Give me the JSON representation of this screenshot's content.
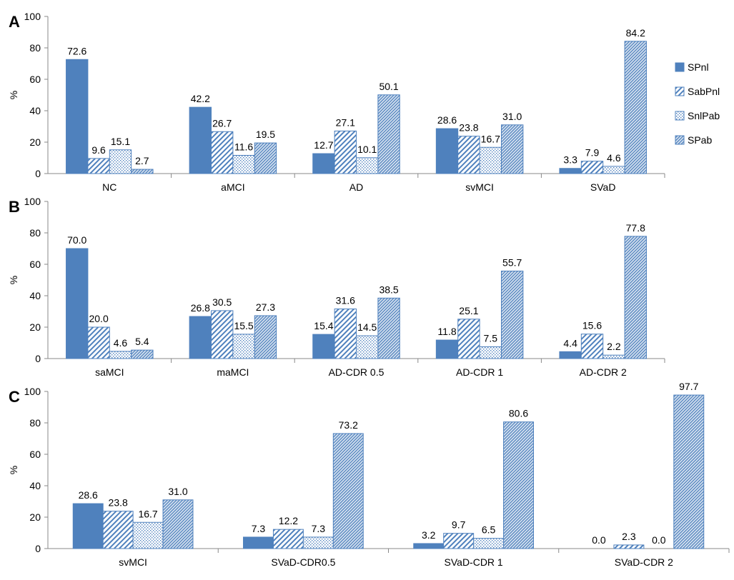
{
  "legend": [
    {
      "name": "SPnl",
      "fill": "solid",
      "color": "#4f81bd"
    },
    {
      "name": "SabPnl",
      "fill": "diagonal-hatch",
      "color": "#4f81bd"
    },
    {
      "name": "SnlPab",
      "fill": "dots",
      "color": "#4f81bd"
    },
    {
      "name": "SPab",
      "fill": "dense-hatch",
      "color": "#4f81bd"
    }
  ],
  "chart_data": [
    {
      "panel": "A",
      "type": "bar",
      "ylabel": "%",
      "ylim": [
        0,
        100
      ],
      "yticks": [
        0,
        20,
        40,
        60,
        80,
        100
      ],
      "categories": [
        "NC",
        "aMCI",
        "AD",
        "svMCI",
        "SVaD"
      ],
      "series": [
        {
          "name": "SPnl",
          "values": [
            72.6,
            42.2,
            12.7,
            28.6,
            3.3
          ],
          "labels": [
            "72.6",
            "42.2",
            "12.7",
            "28.6",
            "3.3"
          ]
        },
        {
          "name": "SabPnl",
          "values": [
            9.6,
            26.7,
            27.1,
            23.8,
            7.9
          ],
          "labels": [
            "9.6",
            "26.7",
            "27.1",
            "23.8",
            "7.9"
          ]
        },
        {
          "name": "SnlPab",
          "values": [
            15.1,
            11.6,
            10.1,
            16.7,
            4.6
          ],
          "labels": [
            "15.1",
            "11.6",
            "10.1",
            "16.7",
            "4.6"
          ]
        },
        {
          "name": "SPab",
          "values": [
            2.7,
            19.5,
            50.1,
            31.0,
            84.2
          ],
          "labels": [
            "2.7",
            "19.5",
            "50.1",
            "31.0",
            "84.2"
          ]
        }
      ]
    },
    {
      "panel": "B",
      "type": "bar",
      "ylabel": "%",
      "ylim": [
        0,
        100
      ],
      "yticks": [
        0,
        20,
        40,
        60,
        80,
        100
      ],
      "categories": [
        "saMCI",
        "maMCI",
        "AD-CDR 0.5",
        "AD-CDR 1",
        "AD-CDR 2"
      ],
      "series": [
        {
          "name": "SPnl",
          "values": [
            70.0,
            26.8,
            15.4,
            11.8,
            4.4
          ],
          "labels": [
            "70.0",
            "26.8",
            "15.4",
            "11.8",
            "4.4"
          ]
        },
        {
          "name": "SabPnl",
          "values": [
            20.0,
            30.5,
            31.6,
            25.1,
            15.6
          ],
          "labels": [
            "20.0",
            "30.5",
            "31.6",
            "25.1",
            "15.6"
          ]
        },
        {
          "name": "SnlPab",
          "values": [
            4.6,
            15.5,
            14.5,
            7.5,
            2.2
          ],
          "labels": [
            "4.6",
            "15.5",
            "14.5",
            "7.5",
            "2.2"
          ]
        },
        {
          "name": "SPab",
          "values": [
            5.4,
            27.3,
            38.5,
            55.7,
            77.8
          ],
          "labels": [
            "5.4",
            "27.3",
            "38.5",
            "55.7",
            "77.8"
          ]
        }
      ]
    },
    {
      "panel": "C",
      "type": "bar",
      "ylabel": "%",
      "ylim": [
        0,
        100
      ],
      "yticks": [
        0,
        20,
        40,
        60,
        80,
        100
      ],
      "categories": [
        "svMCI",
        "SVaD-CDR0.5",
        "SVaD-CDR 1",
        "SVaD-CDR 2"
      ],
      "series": [
        {
          "name": "SPnl",
          "values": [
            28.6,
            7.3,
            3.2,
            0.0
          ],
          "labels": [
            "28.6",
            "7.3",
            "3.2",
            "0.0"
          ]
        },
        {
          "name": "SabPnl",
          "values": [
            23.8,
            12.2,
            9.7,
            2.3
          ],
          "labels": [
            "23.8",
            "12.2",
            "9.7",
            "2.3"
          ]
        },
        {
          "name": "SnlPab",
          "values": [
            16.7,
            7.3,
            6.5,
            0.0
          ],
          "labels": [
            "16.7",
            "7.3",
            "6.5",
            "0.0"
          ]
        },
        {
          "name": "SPab",
          "values": [
            31.0,
            73.2,
            80.6,
            97.7
          ],
          "labels": [
            "31.0",
            "73.2",
            "80.6",
            "97.7"
          ]
        }
      ]
    }
  ]
}
